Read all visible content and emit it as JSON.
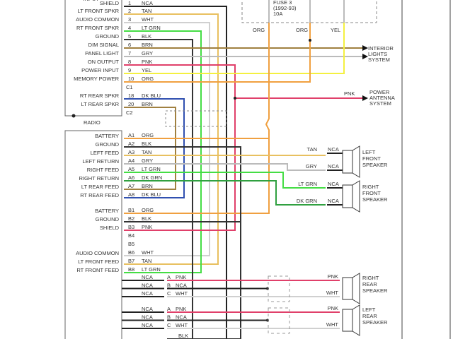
{
  "radio": {
    "label": "RADIO",
    "top_partial_label": "INPUT",
    "c1_pins": [
      {
        "name": "SHIELD",
        "pin": "1",
        "color": "NCA"
      },
      {
        "name": "LT FRONT SPKR",
        "pin": "2",
        "color": "TAN"
      },
      {
        "name": "AUDIO COMMON",
        "pin": "3",
        "color": "WHT"
      },
      {
        "name": "RT FRONT SPKR",
        "pin": "4",
        "color": "LT GRN"
      },
      {
        "name": "GROUND",
        "pin": "5",
        "color": "BLK"
      },
      {
        "name": "DIM SIGNAL",
        "pin": "6",
        "color": "BRN"
      },
      {
        "name": "PANEL LIGHT",
        "pin": "7",
        "color": "GRY"
      },
      {
        "name": "ON OUTPUT",
        "pin": "8",
        "color": "PNK"
      },
      {
        "name": "POWER INPUT",
        "pin": "9",
        "color": "YEL"
      },
      {
        "name": "MEMORY POWER",
        "pin": "10",
        "color": "ORG"
      }
    ],
    "c1_label": "C1",
    "c2_pins": [
      {
        "name": "RT REAR SPKR",
        "pin": "18",
        "color": "DK BLU"
      },
      {
        "name": "LT REAR SPKR",
        "pin": "20",
        "color": "BRN"
      }
    ],
    "c2_label": "C2"
  },
  "amplifier": {
    "a_pins": [
      {
        "name": "BATTERY",
        "pin": "A1",
        "color": "ORG"
      },
      {
        "name": "GROUND",
        "pin": "A2",
        "color": "BLK"
      },
      {
        "name": "LEFT FEED",
        "pin": "A3",
        "color": "TAN"
      },
      {
        "name": "LEFT RETURN",
        "pin": "A4",
        "color": "GRY"
      },
      {
        "name": "RIGHT FEED",
        "pin": "A5",
        "color": "LT GRN"
      },
      {
        "name": "RIGHT RETURN",
        "pin": "A6",
        "color": "DK GRN"
      },
      {
        "name": "LT REAR FEED",
        "pin": "A7",
        "color": "BRN"
      },
      {
        "name": "RT REAR FEED",
        "pin": "A8",
        "color": "DK BLU"
      }
    ],
    "b_pins": [
      {
        "name": "BATTERY",
        "pin": "B1",
        "color": "ORG"
      },
      {
        "name": "GROUND",
        "pin": "B2",
        "color": "BLK"
      },
      {
        "name": "SHIELD",
        "pin": "B3",
        "color": "PNK"
      },
      {
        "name": "",
        "pin": "B4",
        "color": ""
      },
      {
        "name": "",
        "pin": "B5",
        "color": ""
      },
      {
        "name": "AUDIO COMMON",
        "pin": "B6",
        "color": "WHT"
      },
      {
        "name": "LT FRONT FEED",
        "pin": "B7",
        "color": "TAN"
      },
      {
        "name": "RT FRONT FEED",
        "pin": "B8",
        "color": "LT GRN"
      }
    ]
  },
  "fuse": {
    "lines": [
      "FUSE 3",
      "(1992-93)",
      "10A"
    ],
    "wires": [
      "ORG",
      "ORG",
      "YEL"
    ]
  },
  "destinations": {
    "interior_lights": [
      "INTERIOR",
      "LIGHTS",
      "SYSTEM"
    ],
    "power_antenna": [
      "POWER",
      "ANTENNA",
      "SYSTEM"
    ],
    "power_antenna_wire": "PNK"
  },
  "front_speakers": {
    "left": {
      "label": [
        "LEFT",
        "FRONT",
        "SPEAKER"
      ],
      "wires": [
        "TAN",
        "GRY"
      ],
      "terminal": "NCA"
    },
    "right": {
      "label": [
        "RIGHT",
        "FRONT",
        "SPEAKER"
      ],
      "wires": [
        "LT GRN",
        "DK GRN"
      ],
      "terminal": "NCA"
    }
  },
  "rear_speakers": {
    "right": {
      "label": [
        "RIGHT",
        "REAR",
        "SPEAKER"
      ],
      "wires": [
        "PNK",
        "WHT"
      ]
    },
    "left": {
      "label": [
        "LEFT",
        "REAR",
        "SPEAKER"
      ],
      "wires": [
        "PNK",
        "WHT"
      ]
    },
    "connector_rows": [
      {
        "left": "NCA",
        "pin": "A",
        "right": "PNK"
      },
      {
        "left": "NCA",
        "pin": "B",
        "right": "NCA"
      },
      {
        "left": "NCA",
        "pin": "C",
        "right": "WHT"
      }
    ],
    "bottom_wire": "BLK"
  },
  "wire_colors": {
    "NCA": "#222222",
    "TAN": "#e8c060",
    "WHT": "#d0d0d0",
    "LT GRN": "#44dd44",
    "BLK": "#333333",
    "BRN": "#a08040",
    "GRY": "#bbbbbb",
    "PNK": "#e0406a",
    "YEL": "#f4f040",
    "ORG": "#f0a040",
    "DK BLU": "#3050b0",
    "DK GRN": "#30a040"
  }
}
